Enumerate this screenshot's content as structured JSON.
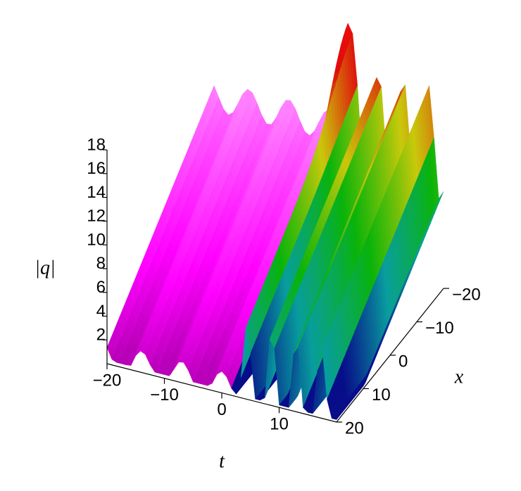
{
  "chart_data": {
    "type": "surface",
    "zlabel": "|q|",
    "xlabel": "t",
    "ylabel": "x",
    "tlim": [
      -20,
      20
    ],
    "tticks": [
      {
        "value": -20,
        "label": "−20"
      },
      {
        "value": -10,
        "label": "−10"
      },
      0,
      10
    ],
    "xlim": [
      -20,
      20
    ],
    "xticks": [
      {
        "value": -20,
        "label": "−20"
      },
      {
        "value": -10,
        "label": "−10"
      },
      0,
      10,
      20
    ],
    "zlim": [
      0,
      18
    ],
    "zticks": [
      2,
      4,
      6,
      8,
      10,
      12,
      14,
      16,
      18
    ]
  }
}
